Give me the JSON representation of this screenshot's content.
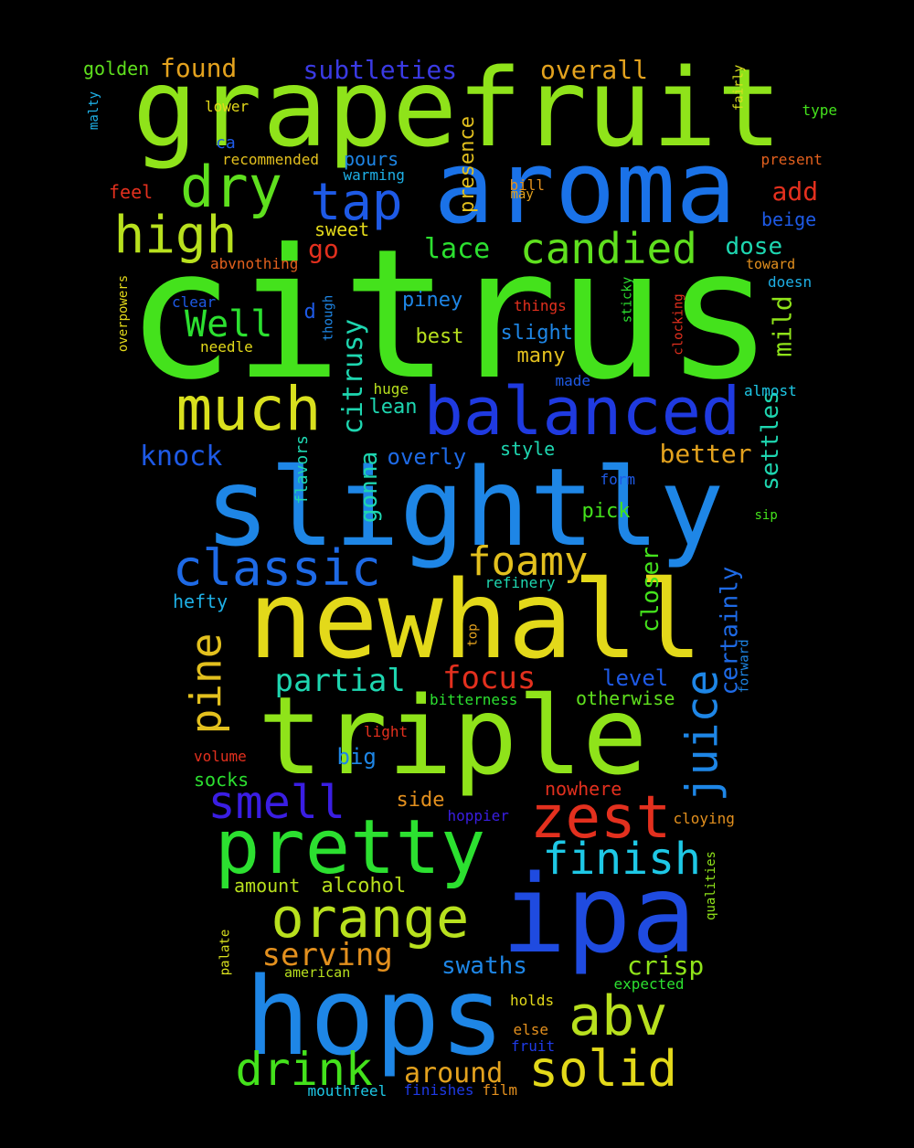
{
  "words": [
    {
      "text": "citrus",
      "color": "#44e21c"
    },
    {
      "text": "grapefruit",
      "color": "#8fe31a"
    },
    {
      "text": "aroma",
      "color": "#1a72e8"
    },
    {
      "text": "slightly",
      "color": "#1e86e6"
    },
    {
      "text": "newhall",
      "color": "#e3d91a"
    },
    {
      "text": "triple",
      "color": "#8fe31a"
    },
    {
      "text": "hops",
      "color": "#1e86e6"
    },
    {
      "text": "ipa",
      "color": "#1f4be0"
    },
    {
      "text": "pretty",
      "color": "#2ce030"
    },
    {
      "text": "balanced",
      "color": "#1f3ae0"
    },
    {
      "text": "much",
      "color": "#d9e01e"
    },
    {
      "text": "zest",
      "color": "#e3301e"
    },
    {
      "text": "orange",
      "color": "#b8e01e"
    },
    {
      "text": "classic",
      "color": "#1e6ae6"
    },
    {
      "text": "solid",
      "color": "#e3d91a"
    },
    {
      "text": "abv",
      "color": "#b8e01e"
    },
    {
      "text": "drink",
      "color": "#44e21c"
    },
    {
      "text": "high",
      "color": "#b8e01e"
    },
    {
      "text": "dry",
      "color": "#5fe01e"
    },
    {
      "text": "tap",
      "color": "#1e5ae6"
    },
    {
      "text": "candied",
      "color": "#5fe01e"
    },
    {
      "text": "finish",
      "color": "#1ec8e6"
    },
    {
      "text": "smell",
      "color": "#3a1ee3"
    },
    {
      "text": "foamy",
      "color": "#e3c01e"
    },
    {
      "text": "pine",
      "color": "#e3c01e"
    },
    {
      "text": "juice",
      "color": "#1e86e6"
    },
    {
      "text": "Well",
      "color": "#2ce030"
    },
    {
      "text": "partial",
      "color": "#1ed6b0"
    },
    {
      "text": "focus",
      "color": "#e3301e"
    },
    {
      "text": "serving",
      "color": "#e3901e"
    },
    {
      "text": "around",
      "color": "#e3a21e"
    },
    {
      "text": "crisp",
      "color": "#8fe31a"
    },
    {
      "text": "better",
      "color": "#e3a21e"
    },
    {
      "text": "knock",
      "color": "#1e5ae6"
    },
    {
      "text": "swaths",
      "color": "#1e86e6"
    },
    {
      "text": "subtleties",
      "color": "#3a3ae3"
    },
    {
      "text": "overall",
      "color": "#e3a21e"
    },
    {
      "text": "found",
      "color": "#e3a21e"
    },
    {
      "text": "golden",
      "color": "#5fe01e"
    },
    {
      "text": "citrusy",
      "color": "#1ed6b0"
    },
    {
      "text": "lace",
      "color": "#2ce030"
    },
    {
      "text": "dose",
      "color": "#1ed6b0"
    },
    {
      "text": "add",
      "color": "#e3301e"
    },
    {
      "text": "go",
      "color": "#e3301e"
    },
    {
      "text": "mild",
      "color": "#8fe31a"
    },
    {
      "text": "certainly",
      "color": "#1e6ae6"
    },
    {
      "text": "closer",
      "color": "#44e21c"
    },
    {
      "text": "presence",
      "color": "#e3c01e"
    },
    {
      "text": "gonna",
      "color": "#1ed6b0"
    },
    {
      "text": "settles",
      "color": "#1ed6b0"
    },
    {
      "text": "alcohol",
      "color": "#b8e01e"
    },
    {
      "text": "piney",
      "color": "#1e86e6"
    },
    {
      "text": "lean",
      "color": "#1ed6b0"
    },
    {
      "text": "slight",
      "color": "#1e86e6"
    },
    {
      "text": "best",
      "color": "#b8e01e"
    },
    {
      "text": "many",
      "color": "#e3c01e"
    },
    {
      "text": "overly",
      "color": "#1e6ae6"
    },
    {
      "text": "style",
      "color": "#1ed6b0"
    },
    {
      "text": "pick",
      "color": "#44e21c"
    },
    {
      "text": "level",
      "color": "#1e5ae6"
    },
    {
      "text": "otherwise",
      "color": "#5fe01e"
    },
    {
      "text": "big",
      "color": "#1e86e6"
    },
    {
      "text": "side",
      "color": "#e3901e"
    },
    {
      "text": "nowhere",
      "color": "#e3301e"
    },
    {
      "text": "socks",
      "color": "#2ce030"
    },
    {
      "text": "amount",
      "color": "#b8e01e"
    },
    {
      "text": "hefty",
      "color": "#1eb0e6"
    },
    {
      "text": "flavors",
      "color": "#1ed6b0"
    },
    {
      "text": "sweet",
      "color": "#e3d91a"
    },
    {
      "text": "pours",
      "color": "#1e86e6"
    },
    {
      "text": "d",
      "color": "#1e5ae6"
    },
    {
      "text": "feel",
      "color": "#e3301e"
    },
    {
      "text": "ca",
      "color": "#1e5ae6"
    },
    {
      "text": "beige",
      "color": "#1e5ae6"
    },
    {
      "text": "malty",
      "color": "#1eb0e6"
    },
    {
      "text": "lower",
      "color": "#e3d91a"
    },
    {
      "text": "recommended",
      "color": "#e3c01e"
    },
    {
      "text": "warming",
      "color": "#1eb0e6"
    },
    {
      "text": "bill",
      "color": "#e3901e"
    },
    {
      "text": "may",
      "color": "#e3a21e"
    },
    {
      "text": "fairly",
      "color": "#d9e01e"
    },
    {
      "text": "type",
      "color": "#44e21c"
    },
    {
      "text": "present",
      "color": "#e3601e"
    },
    {
      "text": "toward",
      "color": "#e3901e"
    },
    {
      "text": "doesn",
      "color": "#1eb0e6"
    },
    {
      "text": "abvnothing",
      "color": "#e3601e"
    },
    {
      "text": "overpowers",
      "color": "#e3d91a"
    },
    {
      "text": "clear",
      "color": "#1e5ae6"
    },
    {
      "text": "needle",
      "color": "#e3d91a"
    },
    {
      "text": "though",
      "color": "#1e86e6"
    },
    {
      "text": "things",
      "color": "#e3301e"
    },
    {
      "text": "sticky",
      "color": "#2ce030"
    },
    {
      "text": "clocking",
      "color": "#e3301e"
    },
    {
      "text": "made",
      "color": "#1e5ae6"
    },
    {
      "text": "huge",
      "color": "#b8e01e"
    },
    {
      "text": "almost",
      "color": "#1ec8e6"
    },
    {
      "text": "form",
      "color": "#1e5ae6"
    },
    {
      "text": "sip",
      "color": "#44e21c"
    },
    {
      "text": "refinery",
      "color": "#1ed6b0"
    },
    {
      "text": "top",
      "color": "#e3a21e"
    },
    {
      "text": "forward",
      "color": "#1e86e6"
    },
    {
      "text": "bitterness",
      "color": "#2ce030"
    },
    {
      "text": "light",
      "color": "#e3301e"
    },
    {
      "text": "volume",
      "color": "#e3301e"
    },
    {
      "text": "hoppier",
      "color": "#3a1ee3"
    },
    {
      "text": "cloying",
      "color": "#e3901e"
    },
    {
      "text": "qualities",
      "color": "#8fe31a"
    },
    {
      "text": "palate",
      "color": "#d9e01e"
    },
    {
      "text": "american",
      "color": "#b8e01e"
    },
    {
      "text": "expected",
      "color": "#2ce030"
    },
    {
      "text": "holds",
      "color": "#e3d91a"
    },
    {
      "text": "else",
      "color": "#e3901e"
    },
    {
      "text": "fruit",
      "color": "#1e3ae6"
    },
    {
      "text": "mouthfeel",
      "color": "#1ec8e6"
    },
    {
      "text": "finishes",
      "color": "#1e3ae6"
    },
    {
      "text": "film",
      "color": "#e3901e"
    }
  ]
}
